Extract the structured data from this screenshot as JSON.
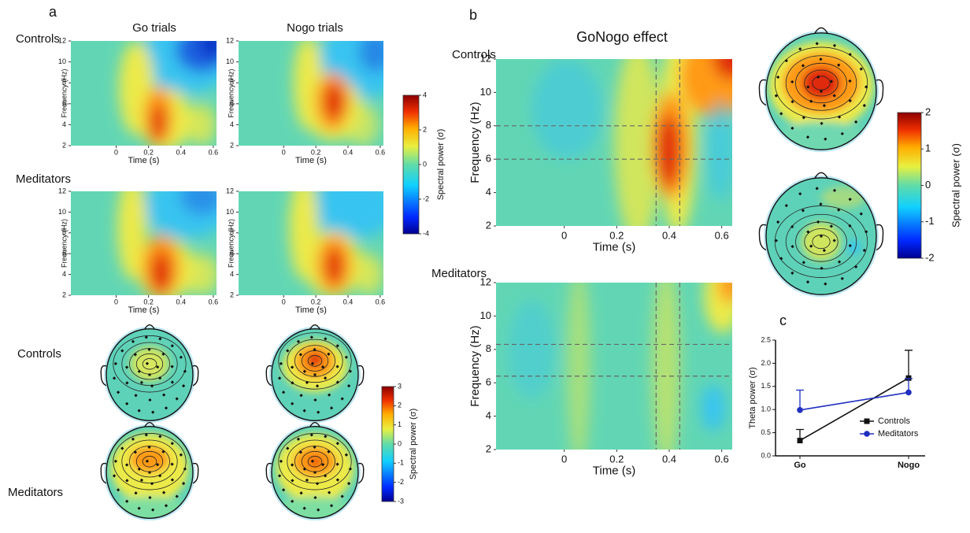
{
  "panel_a": {
    "label": "a",
    "columns": [
      "Go trials",
      "Nogo trials"
    ],
    "rows": [
      "Controls",
      "Meditators"
    ],
    "x_label": "Time (s)",
    "y_label": "Frequency (Hz)",
    "xlim": [
      -0.28,
      0.62
    ],
    "xticks": [
      0,
      0.2,
      0.4,
      0.6
    ],
    "ylim": [
      2,
      12
    ],
    "yticks": [
      2,
      4,
      6,
      8,
      10,
      12
    ],
    "colorbar": {
      "label": "Spectral power (σ)",
      "lim": [
        -4,
        4
      ],
      "ticks": [
        -4,
        -2,
        0,
        2,
        4
      ]
    },
    "topo_rows": [
      "Controls",
      "Meditators"
    ],
    "topo_colorbar": {
      "label": "Spectral power (σ)",
      "lim": [
        -3,
        3
      ],
      "ticks": [
        -3,
        -2,
        -1,
        0,
        1,
        2,
        3
      ]
    }
  },
  "panel_b": {
    "label": "b",
    "title": "GoNogo effect",
    "rows": [
      "Controls",
      "Meditators"
    ],
    "x_label": "Time (s)",
    "y_label": "Frequency (Hz)",
    "xlim": [
      -0.26,
      0.64
    ],
    "xticks": [
      0,
      0.2,
      0.4,
      0.6
    ],
    "ylim": [
      2,
      12
    ],
    "yticks": [
      2,
      4,
      6,
      8,
      10,
      12
    ],
    "windows_x": [
      0.35,
      0.44
    ],
    "windows_y": [
      [
        6,
        8
      ],
      [
        6.4,
        8.3
      ]
    ],
    "colorbar": {
      "label": "Spectral power (σ)",
      "lim": [
        -2,
        2
      ],
      "ticks": [
        -2,
        -1,
        0,
        1,
        2
      ]
    }
  },
  "chart_data": {
    "type": "line",
    "label": "c",
    "y_label": "Theta power (σ)",
    "categories": [
      "Go",
      "Nogo"
    ],
    "series": [
      {
        "name": "Controls",
        "color": "#111111",
        "marker": "square",
        "values": [
          0.33,
          1.68
        ],
        "errors": [
          0.24,
          0.6
        ]
      },
      {
        "name": "Meditators",
        "color": "#1f2fbf",
        "marker": "circle",
        "values": [
          0.99,
          1.37
        ],
        "errors": [
          0.43,
          0.3
        ]
      }
    ],
    "ylim": [
      0,
      2.5
    ],
    "yticks": [
      {
        "value": 0,
        "label": "0.0"
      },
      {
        "value": 0.5,
        "label": "0.5"
      },
      {
        "value": 1,
        "label": "1.0"
      },
      {
        "value": 1.5,
        "label": "1.5"
      },
      {
        "value": 2,
        "label": "2.0"
      },
      {
        "value": 2.5,
        "label": "2.5"
      }
    ]
  }
}
